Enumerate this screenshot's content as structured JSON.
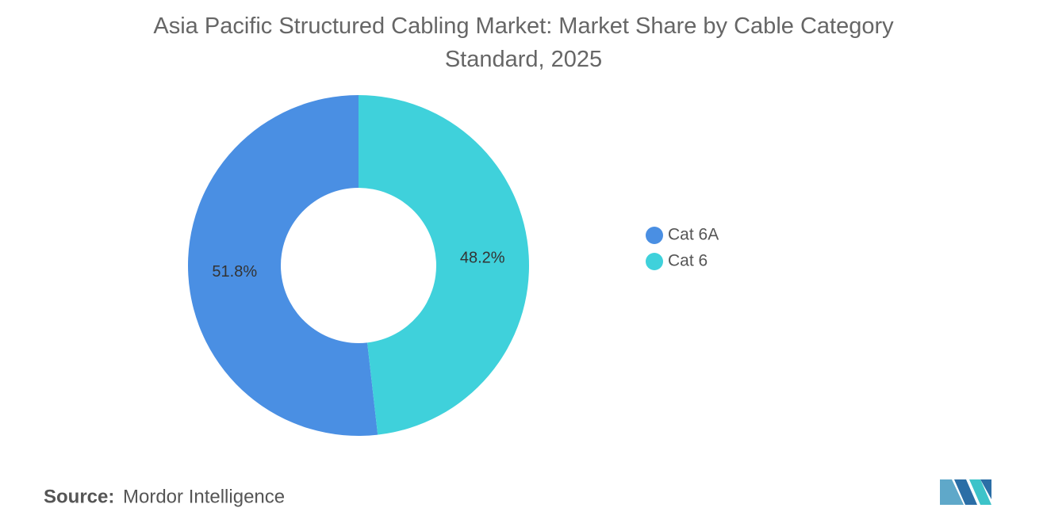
{
  "chart_data": {
    "type": "pie",
    "donut": true,
    "title": "Asia Pacific Structured Cabling Market: Market Share by Cable Category Standard, 2025",
    "categories": [
      "Cat 6A",
      "Cat 6"
    ],
    "values": [
      51.8,
      48.2
    ],
    "value_labels": [
      "51.8%",
      "48.2%"
    ],
    "colors": [
      "#4a8fe3",
      "#3fd1db"
    ],
    "legend": "right",
    "source_label": "Source:",
    "source": "Mordor Intelligence"
  }
}
